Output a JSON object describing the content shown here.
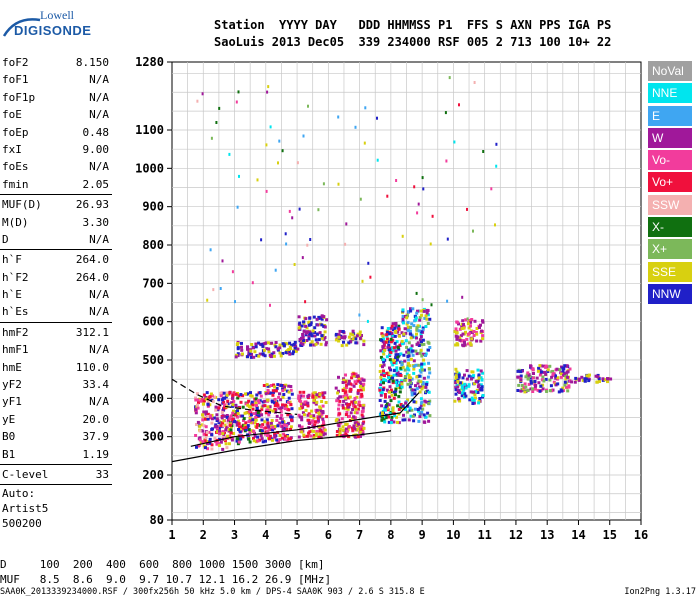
{
  "logo": {
    "line1": "Lowell",
    "line2": "DIGISONDE"
  },
  "header": {
    "line1": "Station  YYYY DAY   DDD HHMMSS P1  FFS S AXN PPS IGA PS",
    "line2": "SaoLuis 2013 Dec05  339 234000 RSF 005 2 713 100 10+ 22"
  },
  "params": {
    "group1": [
      {
        "k": "foF2",
        "v": "8.150"
      },
      {
        "k": "foF1",
        "v": "N/A"
      },
      {
        "k": "foF1p",
        "v": "N/A"
      },
      {
        "k": "foE",
        "v": "N/A"
      },
      {
        "k": "foEp",
        "v": "0.48"
      },
      {
        "k": "fxI",
        "v": "9.00"
      },
      {
        "k": "foEs",
        "v": "N/A"
      },
      {
        "k": "fmin",
        "v": "2.05"
      }
    ],
    "group2": [
      {
        "k": "MUF(D)",
        "v": "26.93"
      },
      {
        "k": "M(D)",
        "v": "3.30"
      },
      {
        "k": "D",
        "v": "N/A"
      }
    ],
    "group3": [
      {
        "k": "h`F",
        "v": "264.0"
      },
      {
        "k": "h`F2",
        "v": "264.0"
      },
      {
        "k": "h`E",
        "v": "N/A"
      },
      {
        "k": "h`Es",
        "v": "N/A"
      }
    ],
    "group4": [
      {
        "k": "hmF2",
        "v": "312.1"
      },
      {
        "k": "hmF1",
        "v": "N/A"
      },
      {
        "k": "hmE",
        "v": "110.0"
      },
      {
        "k": "yF2",
        "v": "33.4"
      },
      {
        "k": "yF1",
        "v": "N/A"
      },
      {
        "k": "yE",
        "v": "20.0"
      },
      {
        "k": "B0",
        "v": "37.9"
      },
      {
        "k": "B1",
        "v": "1.19"
      }
    ],
    "group5": [
      {
        "k": "C-level",
        "v": "33"
      }
    ],
    "auto": [
      "Auto:",
      "Artist5",
      "500200"
    ]
  },
  "legend": [
    {
      "label": "NoVal",
      "color": "#a0a0a0"
    },
    {
      "label": "NNE",
      "color": "#00e5ee"
    },
    {
      "label": "E",
      "color": "#3fa6f2"
    },
    {
      "label": "W",
      "color": "#a0189a"
    },
    {
      "label": "Vo-",
      "color": "#f23c9c"
    },
    {
      "label": "Vo+",
      "color": "#f0103c"
    },
    {
      "label": "SSW",
      "color": "#f4b0b0"
    },
    {
      "label": "X-",
      "color": "#107010"
    },
    {
      "label": "X+",
      "color": "#7cb85a"
    },
    {
      "label": "SSE",
      "color": "#d8d010"
    },
    {
      "label": "NNW",
      "color": "#2020c8"
    }
  ],
  "footer": {
    "d_line": "D     100  200  400  600  800 1000 1500 3000 [km]",
    "muf_line": "MUF   8.5  8.6  9.0  9.7 10.7 12.1 16.2 26.9 [MHz]",
    "file_line": "SAA0K_2013339234000.RSF / 300fx256h 50 kHz 5.0 km / DPS-4 SAA0K 903 / 2.6 S 315.8 E",
    "version": "Ion2Png 1.3.17"
  },
  "chart_data": {
    "type": "scatter",
    "title": "",
    "xlabel": "",
    "ylabel": "",
    "x_ticks": [
      1,
      2,
      3,
      4,
      5,
      6,
      7,
      8,
      9,
      10,
      11,
      12,
      13,
      14,
      15,
      16
    ],
    "y_ticks": [
      80,
      200,
      300,
      400,
      500,
      600,
      700,
      800,
      900,
      1000,
      1100,
      1280
    ],
    "xlim": [
      1,
      16
    ],
    "ylim": [
      80,
      1280
    ],
    "grid": true,
    "echo_clusters": [
      {
        "x": [
          1.7,
          2.8
        ],
        "y": [
          270,
          420
        ],
        "colors": [
          "Vo+",
          "Vo-",
          "W",
          "NNW",
          "SSE",
          "SSW"
        ]
      },
      {
        "x": [
          2.8,
          3.9
        ],
        "y": [
          285,
          420
        ],
        "colors": [
          "Vo+",
          "Vo-",
          "W",
          "NNW",
          "X-",
          "SSE"
        ]
      },
      {
        "x": [
          3.9,
          4.8
        ],
        "y": [
          290,
          440
        ],
        "colors": [
          "Vo+",
          "Vo-",
          "W",
          "NNW",
          "SSE"
        ]
      },
      {
        "x": [
          5.0,
          5.9
        ],
        "y": [
          300,
          420
        ],
        "colors": [
          "Vo+",
          "Vo-",
          "SSE",
          "W"
        ]
      },
      {
        "x": [
          6.2,
          7.1
        ],
        "y": [
          300,
          470
        ],
        "colors": [
          "Vo+",
          "Vo-",
          "W",
          "SSE"
        ]
      },
      {
        "x": [
          7.6,
          8.3
        ],
        "y": [
          340,
          600
        ],
        "colors": [
          "NNW",
          "W",
          "SSE",
          "X-",
          "Vo+",
          "NNE"
        ]
      },
      {
        "x": [
          8.3,
          9.2
        ],
        "y": [
          340,
          640
        ],
        "colors": [
          "NNW",
          "W",
          "SSE",
          "NNE",
          "X+",
          "E"
        ]
      },
      {
        "x": [
          3.0,
          5.0
        ],
        "y": [
          510,
          550
        ],
        "colors": [
          "SSE",
          "W",
          "NNW"
        ]
      },
      {
        "x": [
          5.0,
          5.9
        ],
        "y": [
          540,
          620
        ],
        "colors": [
          "SSE",
          "NNW",
          "W"
        ]
      },
      {
        "x": [
          6.2,
          7.1
        ],
        "y": [
          540,
          580
        ],
        "colors": [
          "SSE",
          "NNW",
          "W"
        ]
      },
      {
        "x": [
          10.0,
          10.9
        ],
        "y": [
          390,
          480
        ],
        "colors": [
          "NNW",
          "W",
          "SSE",
          "NNE"
        ]
      },
      {
        "x": [
          10.0,
          10.9
        ],
        "y": [
          540,
          610
        ],
        "colors": [
          "W",
          "SSE",
          "Vo-"
        ]
      },
      {
        "x": [
          12.0,
          13.7
        ],
        "y": [
          420,
          490
        ],
        "colors": [
          "NNW",
          "W",
          "SSE",
          "X+",
          "Vo-"
        ]
      },
      {
        "x": [
          13.7,
          15.0
        ],
        "y": [
          445,
          465
        ],
        "colors": [
          "W",
          "NNW",
          "SSE"
        ]
      }
    ],
    "trace_lines": [
      {
        "style": "solid",
        "points": [
          [
            1.0,
            235
          ],
          [
            3.0,
            265
          ],
          [
            5.0,
            290
          ],
          [
            7.0,
            305
          ],
          [
            8.0,
            315
          ],
          [
            7.5,
            310
          ]
        ]
      },
      {
        "style": "solid",
        "points": [
          [
            1.6,
            275
          ],
          [
            3.0,
            300
          ],
          [
            5.0,
            318
          ],
          [
            7.0,
            345
          ],
          [
            8.3,
            362
          ],
          [
            8.9,
            415
          ]
        ]
      },
      {
        "style": "dashed",
        "points": [
          [
            1.0,
            450
          ],
          [
            1.8,
            410
          ],
          [
            2.6,
            380
          ],
          [
            3.5,
            370
          ],
          [
            5.0,
            358
          ]
        ]
      }
    ]
  }
}
